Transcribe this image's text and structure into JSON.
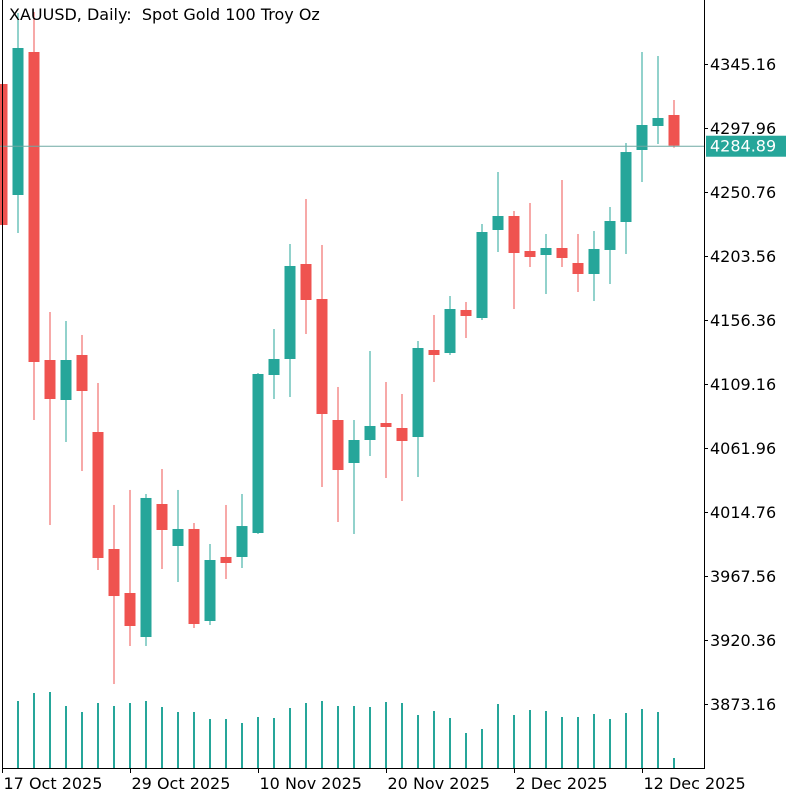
{
  "header": {
    "title": "XAUUSD, Daily:  Spot Gold 100 Troy Oz"
  },
  "colors": {
    "bull": "#26a69a",
    "bear": "#ef5350",
    "volume": "#26a69a",
    "price_line": "#6fa9a3",
    "price_label_bg": "#26a69a",
    "price_label_text": "#ffffff",
    "axis": "#000000"
  },
  "chart_data": {
    "type": "candlestick",
    "title": "XAUUSD, Daily:  Spot Gold 100 Troy Oz",
    "ylim": [
      3825.96,
      4392.36
    ],
    "y_ticks": [
      "4345.16",
      "4297.96",
      "4250.76",
      "4203.56",
      "4156.36",
      "4109.16",
      "4061.96",
      "4014.76",
      "3967.56",
      "3920.36",
      "3873.16"
    ],
    "x_ticks": [
      {
        "label": "17 Oct 2025",
        "index": 0
      },
      {
        "label": "29 Oct 2025",
        "index": 8
      },
      {
        "label": "10 Nov 2025",
        "index": 16
      },
      {
        "label": "20 Nov 2025",
        "index": 24
      },
      {
        "label": "2 Dec 2025",
        "index": 32
      },
      {
        "label": "12 Dec 2025",
        "index": 40
      }
    ],
    "current_price": "4284.89",
    "ohlc": [
      [
        4330.41,
        4330.41,
        4226.42,
        4226.42
      ],
      [
        4248.55,
        4382.77,
        4220.52,
        4356.96
      ],
      [
        4354.01,
        4383.51,
        4082.61,
        4125.39
      ],
      [
        4126.86,
        4162.26,
        4005.17,
        4098.1
      ],
      [
        4097.36,
        4155.62,
        4066.39,
        4126.86
      ],
      [
        4130.55,
        4145.3,
        4044.99,
        4104.0
      ],
      [
        4073.76,
        4109.9,
        3971.99,
        3980.84
      ],
      [
        3987.47,
        4019.94,
        3887.9,
        3952.8
      ],
      [
        3955.02,
        4031.01,
        3915.94,
        3930.69
      ],
      [
        3922.57,
        4028.04,
        3915.94,
        4025.1
      ],
      [
        4020.66,
        4046.47,
        3972.72,
        4001.49
      ],
      [
        3989.69,
        4031.01,
        3963.13,
        4002.23
      ],
      [
        4002.23,
        4006.66,
        3929.21,
        3932.16
      ],
      [
        3934.38,
        3991.16,
        3931.42,
        3979.36
      ],
      [
        3981.58,
        4019.94,
        3965.34,
        3977.15
      ],
      [
        3981.58,
        4028.04,
        3973.46,
        4004.41
      ],
      [
        3999.27,
        4117.27,
        3998.54,
        4116.54
      ],
      [
        4115.8,
        4149.72,
        4098.1,
        4127.6
      ],
      [
        4127.6,
        4212.41,
        4099.57,
        4196.19
      ],
      [
        4197.66,
        4245.6,
        4146.04,
        4171.11
      ],
      [
        4171.85,
        4211.68,
        4033.2,
        4087.04
      ],
      [
        4082.61,
        4106.95,
        4007.39,
        4045.73
      ],
      [
        4050.9,
        4082.61,
        3998.54,
        4067.86
      ],
      [
        4067.86,
        4133.49,
        4056.06,
        4078.19
      ],
      [
        4080.4,
        4110.63,
        4039.83,
        4077.45
      ],
      [
        4076.71,
        4101.79,
        4022.89,
        4067.13
      ],
      [
        4070.07,
        4140.87,
        4040.57,
        4135.71
      ],
      [
        4134.23,
        4160.05,
        4110.63,
        4130.55
      ],
      [
        4132.02,
        4174.06,
        4130.55,
        4164.47
      ],
      [
        4163.74,
        4169.64,
        4143.08,
        4159.31
      ],
      [
        4157.84,
        4227.16,
        4156.36,
        4221.26
      ],
      [
        4222.74,
        4265.51,
        4206.51,
        4233.06
      ],
      [
        4233.06,
        4236.75,
        4164.47,
        4205.77
      ],
      [
        4207.25,
        4242.65,
        4195.45,
        4202.82
      ],
      [
        4204.3,
        4219.79,
        4175.54,
        4209.46
      ],
      [
        4209.46,
        4259.61,
        4195.45,
        4202.09
      ],
      [
        4198.4,
        4219.79,
        4177.01,
        4190.29
      ],
      [
        4190.29,
        4222.0,
        4170.37,
        4208.73
      ],
      [
        4208.0,
        4239.7,
        4182.91,
        4229.37
      ],
      [
        4228.64,
        4286.9,
        4205.04,
        4280.24
      ],
      [
        4281.74,
        4354.01,
        4258.13,
        4300.17
      ],
      [
        4299.44,
        4351.06,
        4286.16,
        4305.34
      ],
      [
        4307.55,
        4318.61,
        4283.41,
        4284.89
      ]
    ],
    "volume_relative": [
      null,
      67,
      75,
      76,
      62,
      56,
      65,
      62,
      65,
      67,
      61,
      56,
      56,
      49,
      49,
      45,
      51,
      50,
      60,
      65,
      67,
      62,
      62,
      61,
      66,
      65,
      53,
      57,
      50,
      35,
      39,
      64,
      53,
      58,
      57,
      51,
      51,
      54,
      49,
      55,
      59,
      56,
      10
    ]
  }
}
